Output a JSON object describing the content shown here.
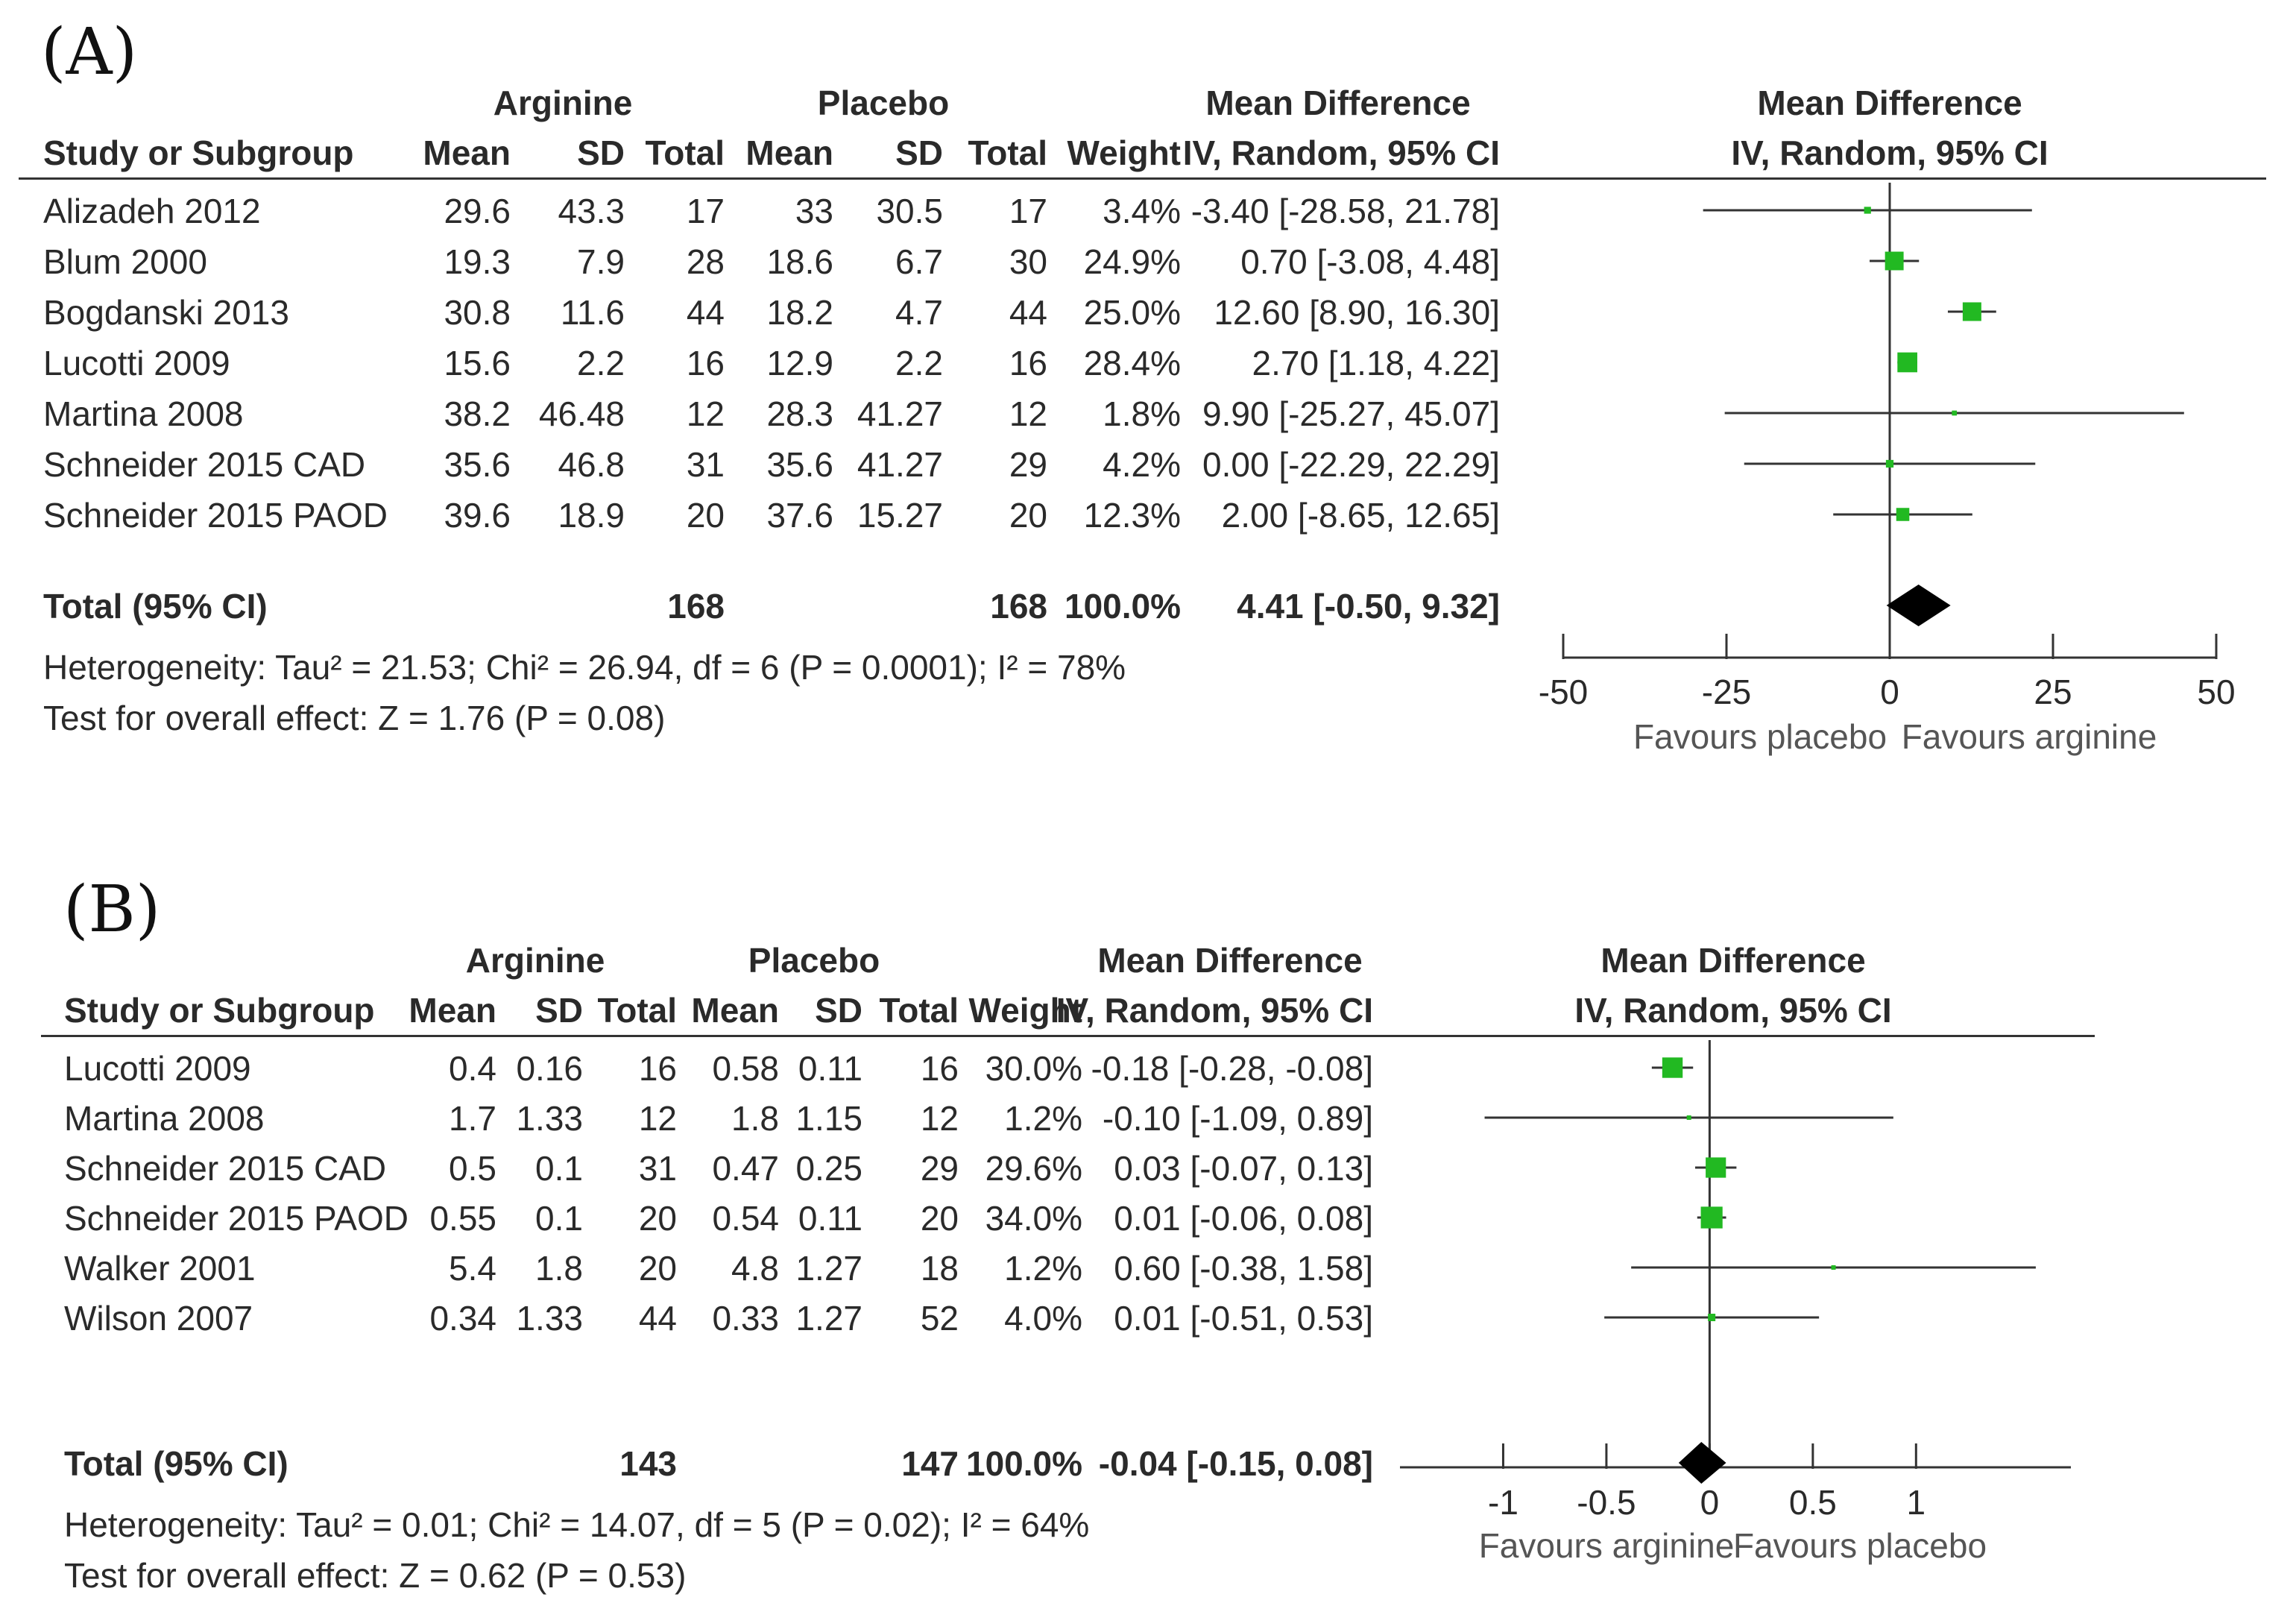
{
  "chart_data": [
    {
      "type": "forest",
      "panel_label": "(A)",
      "group_headers": {
        "arginine": "Arginine",
        "placebo": "Placebo",
        "md_col": "Mean Difference",
        "md_plot": "Mean Difference"
      },
      "col_headers": {
        "study": "Study or Subgroup",
        "mean1": "Mean",
        "sd1": "SD",
        "total1": "Total",
        "mean2": "Mean",
        "sd2": "SD",
        "total2": "Total",
        "weight": "Weight",
        "ci_col": "IV, Random, 95% CI",
        "ci_plot": "IV, Random, 95% CI"
      },
      "studies": [
        {
          "name": "Alizadeh 2012",
          "mean1": "29.6",
          "sd1": "43.3",
          "n1": "17",
          "mean2": "33",
          "sd2": "30.5",
          "n2": "17",
          "weight": "3.4%",
          "ci_text": "-3.40 [-28.58, 21.78]",
          "md": -3.4,
          "lo": -28.58,
          "hi": 21.78,
          "w": 3.4
        },
        {
          "name": "Blum 2000",
          "mean1": "19.3",
          "sd1": "7.9",
          "n1": "28",
          "mean2": "18.6",
          "sd2": "6.7",
          "n2": "30",
          "weight": "24.9%",
          "ci_text": "0.70 [-3.08, 4.48]",
          "md": 0.7,
          "lo": -3.08,
          "hi": 4.48,
          "w": 24.9
        },
        {
          "name": "Bogdanski 2013",
          "mean1": "30.8",
          "sd1": "11.6",
          "n1": "44",
          "mean2": "18.2",
          "sd2": "4.7",
          "n2": "44",
          "weight": "25.0%",
          "ci_text": "12.60 [8.90, 16.30]",
          "md": 12.6,
          "lo": 8.9,
          "hi": 16.3,
          "w": 25.0
        },
        {
          "name": "Lucotti 2009",
          "mean1": "15.6",
          "sd1": "2.2",
          "n1": "16",
          "mean2": "12.9",
          "sd2": "2.2",
          "n2": "16",
          "weight": "28.4%",
          "ci_text": "2.70 [1.18, 4.22]",
          "md": 2.7,
          "lo": 1.18,
          "hi": 4.22,
          "w": 28.4
        },
        {
          "name": "Martina 2008",
          "mean1": "38.2",
          "sd1": "46.48",
          "n1": "12",
          "mean2": "28.3",
          "sd2": "41.27",
          "n2": "12",
          "weight": "1.8%",
          "ci_text": "9.90 [-25.27, 45.07]",
          "md": 9.9,
          "lo": -25.27,
          "hi": 45.07,
          "w": 1.8
        },
        {
          "name": "Schneider 2015 CAD",
          "mean1": "35.6",
          "sd1": "46.8",
          "n1": "31",
          "mean2": "35.6",
          "sd2": "41.27",
          "n2": "29",
          "weight": "4.2%",
          "ci_text": "0.00 [-22.29, 22.29]",
          "md": 0.0,
          "lo": -22.29,
          "hi": 22.29,
          "w": 4.2
        },
        {
          "name": "Schneider 2015 PAOD",
          "mean1": "39.6",
          "sd1": "18.9",
          "n1": "20",
          "mean2": "37.6",
          "sd2": "15.27",
          "n2": "20",
          "weight": "12.3%",
          "ci_text": "2.00 [-8.65, 12.65]",
          "md": 2.0,
          "lo": -8.65,
          "hi": 12.65,
          "w": 12.3
        }
      ],
      "total": {
        "label": "Total (95% CI)",
        "n1": "168",
        "n2": "168",
        "weight": "100.0%",
        "ci_text": "4.41 [-0.50, 9.32]",
        "md": 4.41,
        "lo": -0.5,
        "hi": 9.32
      },
      "heterogeneity": "Heterogeneity: Tau² = 21.53; Chi² = 26.94, df = 6 (P = 0.0001); I² = 78%",
      "overall_effect": "Test for overall effect: Z = 1.76 (P = 0.08)",
      "axis": {
        "min": -50,
        "max": 50,
        "ticks": [
          -50,
          -25,
          0,
          25,
          50
        ],
        "tick_labels": [
          "-50",
          "-25",
          "0",
          "25",
          "50"
        ]
      },
      "favours_left": "Favours placebo",
      "favours_right": "Favours arginine",
      "colors": {
        "marker": "#22b922",
        "diamond": "#000000",
        "line": "#333333"
      }
    },
    {
      "type": "forest",
      "panel_label": "(B)",
      "group_headers": {
        "arginine": "Arginine",
        "placebo": "Placebo",
        "md_col": "Mean Difference",
        "md_plot": "Mean Difference"
      },
      "col_headers": {
        "study": "Study or Subgroup",
        "mean1": "Mean",
        "sd1": "SD",
        "total1": "Total",
        "mean2": "Mean",
        "sd2": "SD",
        "total2": "Total",
        "weight": "Weight",
        "ci_col": "IV, Random, 95% CI",
        "ci_plot": "IV, Random, 95% CI"
      },
      "studies": [
        {
          "name": "Lucotti 2009",
          "mean1": "0.4",
          "sd1": "0.16",
          "n1": "16",
          "mean2": "0.58",
          "sd2": "0.11",
          "n2": "16",
          "weight": "30.0%",
          "ci_text": "-0.18 [-0.28, -0.08]",
          "md": -0.18,
          "lo": -0.28,
          "hi": -0.08,
          "w": 30.0
        },
        {
          "name": "Martina 2008",
          "mean1": "1.7",
          "sd1": "1.33",
          "n1": "12",
          "mean2": "1.8",
          "sd2": "1.15",
          "n2": "12",
          "weight": "1.2%",
          "ci_text": "-0.10 [-1.09, 0.89]",
          "md": -0.1,
          "lo": -1.09,
          "hi": 0.89,
          "w": 1.2
        },
        {
          "name": "Schneider 2015 CAD",
          "mean1": "0.5",
          "sd1": "0.1",
          "n1": "31",
          "mean2": "0.47",
          "sd2": "0.25",
          "n2": "29",
          "weight": "29.6%",
          "ci_text": "0.03 [-0.07, 0.13]",
          "md": 0.03,
          "lo": -0.07,
          "hi": 0.13,
          "w": 29.6
        },
        {
          "name": "Schneider 2015 PAOD",
          "mean1": "0.55",
          "sd1": "0.1",
          "n1": "20",
          "mean2": "0.54",
          "sd2": "0.11",
          "n2": "20",
          "weight": "34.0%",
          "ci_text": "0.01 [-0.06, 0.08]",
          "md": 0.01,
          "lo": -0.06,
          "hi": 0.08,
          "w": 34.0
        },
        {
          "name": "Walker 2001",
          "mean1": "5.4",
          "sd1": "1.8",
          "n1": "20",
          "mean2": "4.8",
          "sd2": "1.27",
          "n2": "18",
          "weight": "1.2%",
          "ci_text": "0.60 [-0.38, 1.58]",
          "md": 0.6,
          "lo": -0.38,
          "hi": 1.58,
          "w": 1.2
        },
        {
          "name": "Wilson 2007",
          "mean1": "0.34",
          "sd1": "1.33",
          "n1": "44",
          "mean2": "0.33",
          "sd2": "1.27",
          "n2": "52",
          "weight": "4.0%",
          "ci_text": "0.01 [-0.51, 0.53]",
          "md": 0.01,
          "lo": -0.51,
          "hi": 0.53,
          "w": 4.0
        }
      ],
      "total": {
        "label": "Total (95% CI)",
        "n1": "143",
        "n2": "147",
        "weight": "100.0%",
        "ci_text": "-0.04 [-0.15, 0.08]",
        "md": -0.04,
        "lo": -0.15,
        "hi": 0.08
      },
      "heterogeneity": "Heterogeneity: Tau² = 0.01; Chi² = 14.07, df = 5 (P = 0.02); I² = 64%",
      "overall_effect": "Test for overall effect: Z = 0.62 (P = 0.53)",
      "axis": {
        "min": -1.5,
        "max": 1.75,
        "ticks": [
          -1,
          -0.5,
          0,
          0.5,
          1
        ],
        "tick_labels": [
          "-1",
          "-0.5",
          "0",
          "0.5",
          "1"
        ]
      },
      "favours_left": "Favours arginine",
      "favours_right": "Favours placebo",
      "colors": {
        "marker": "#22b922",
        "diamond": "#000000",
        "line": "#333333"
      }
    }
  ]
}
